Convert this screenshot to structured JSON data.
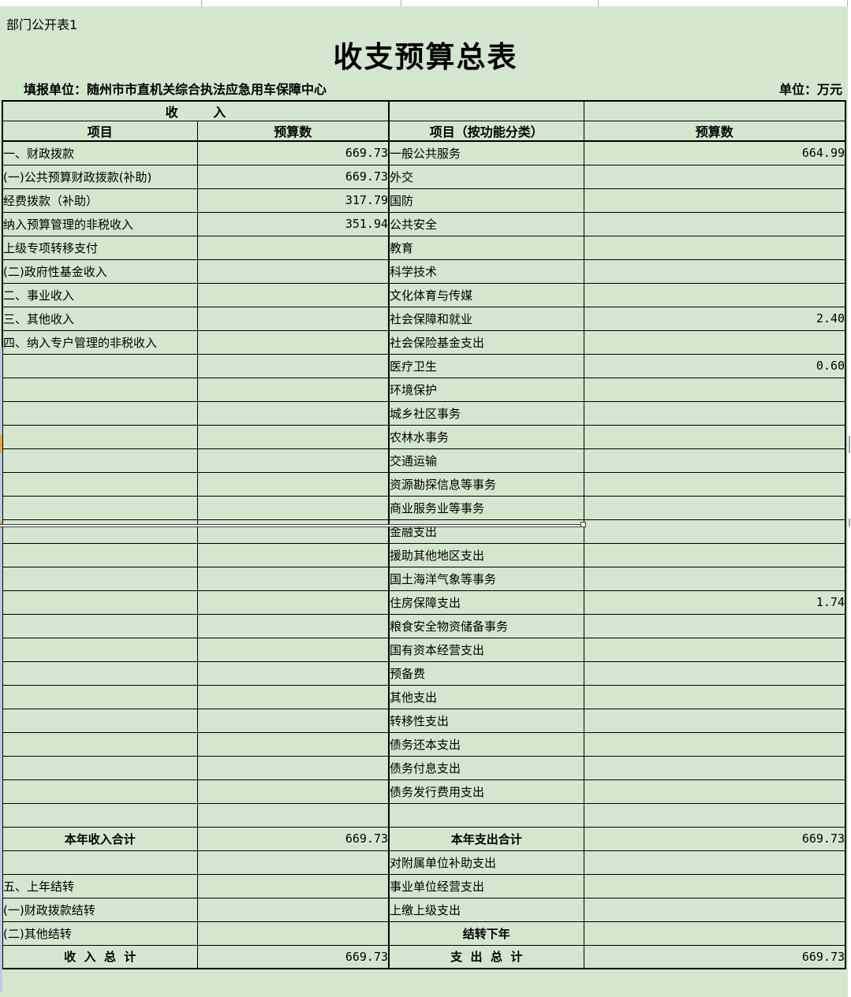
{
  "page": {
    "sheet_label": "部门公开表1",
    "title": "收支预算总表",
    "reporting_unit": "填报单位：随州市市直机关综合执法应急用车保障中心",
    "unit_note": "单位：万元"
  },
  "colors": {
    "sheet_green": "#d3e7cf",
    "grid_line": "#000000",
    "edge_blue": "#b9cbe6",
    "mark_orange": "#f0a63c"
  },
  "table": {
    "header": {
      "income_group": "收        入",
      "col_item": "项目",
      "col_budget": "预算数",
      "col_item_func": "项目（按功能分类）",
      "col_budget_func": "预算数"
    },
    "rows": [
      {
        "l": "一、财政拨款",
        "li": 0,
        "lv": "669.73",
        "r": "一般公共服务",
        "rv": "664.99"
      },
      {
        "l": "(一)公共预算财政拨款(补助)",
        "li": 1,
        "lv": "669.73",
        "r": "外交",
        "rv": ""
      },
      {
        "l": "经费拨款（补助）",
        "li": 2,
        "lv": "317.79",
        "r": "国防",
        "rv": ""
      },
      {
        "l": "纳入预算管理的非税收入",
        "li": 2,
        "lv": "351.94",
        "r": "公共安全",
        "rv": ""
      },
      {
        "l": "上级专项转移支付",
        "li": 2,
        "lv": "",
        "r": "教育",
        "rv": ""
      },
      {
        "l": "(二)政府性基金收入",
        "li": 1,
        "lv": "",
        "r": "科学技术",
        "rv": ""
      },
      {
        "l": "二、事业收入",
        "li": 0,
        "lv": "",
        "r": "文化体育与传媒",
        "rv": ""
      },
      {
        "l": "三、其他收入",
        "li": 0,
        "lv": "",
        "r": "社会保障和就业",
        "rv": "2.40"
      },
      {
        "l": "四、纳入专户管理的非税收入",
        "li": 0,
        "lv": "",
        "r": "社会保险基金支出",
        "rv": ""
      },
      {
        "l": "",
        "li": 0,
        "lv": "",
        "r": "医疗卫生",
        "rv": "0.60"
      },
      {
        "l": "",
        "li": 0,
        "lv": "",
        "r": "环境保护",
        "rv": ""
      },
      {
        "l": "",
        "li": 0,
        "lv": "",
        "r": "城乡社区事务",
        "rv": ""
      },
      {
        "l": "",
        "li": 0,
        "lv": "",
        "r": "农林水事务",
        "rv": ""
      },
      {
        "l": "",
        "li": 0,
        "lv": "",
        "r": "交通运输",
        "rv": ""
      },
      {
        "l": "",
        "li": 0,
        "lv": "",
        "r": "资源勘探信息等事务",
        "rv": ""
      },
      {
        "l": "",
        "li": 0,
        "lv": "",
        "r": "商业服务业等事务",
        "rv": ""
      },
      {
        "l": "",
        "li": 0,
        "lv": "",
        "r": "金融支出",
        "rv": ""
      },
      {
        "l": "",
        "li": 0,
        "lv": "",
        "r": "援助其他地区支出",
        "rv": ""
      },
      {
        "l": "",
        "li": 0,
        "lv": "",
        "r": "国土海洋气象等事务",
        "rv": ""
      },
      {
        "l": "",
        "li": 0,
        "lv": "",
        "r": "住房保障支出",
        "rv": "1.74"
      },
      {
        "l": "",
        "li": 0,
        "lv": "",
        "r": "粮食安全物资储备事务",
        "rv": ""
      },
      {
        "l": "",
        "li": 0,
        "lv": "",
        "r": "国有资本经营支出",
        "rv": ""
      },
      {
        "l": "",
        "li": 0,
        "lv": "",
        "r": "预备费",
        "rv": ""
      },
      {
        "l": "",
        "li": 0,
        "lv": "",
        "r": "其他支出",
        "rv": ""
      },
      {
        "l": "",
        "li": 0,
        "lv": "",
        "r": "转移性支出",
        "rv": ""
      },
      {
        "l": "",
        "li": 0,
        "lv": "",
        "r": "债务还本支出",
        "rv": ""
      },
      {
        "l": "",
        "li": 0,
        "lv": "",
        "r": "债务付息支出",
        "rv": ""
      },
      {
        "l": "",
        "li": 0,
        "lv": "",
        "r": "债务发行费用支出",
        "rv": ""
      },
      {
        "l": "",
        "li": 0,
        "lv": "",
        "r": "",
        "rv": ""
      },
      {
        "l": "本年收入合计",
        "li": 0,
        "lb": true,
        "lc": true,
        "lv": "669.73",
        "r": "本年支出合计",
        "rb": true,
        "rc": true,
        "rv": "669.73"
      },
      {
        "l": "",
        "li": 0,
        "lv": "",
        "r": "对附属单位补助支出",
        "rv": ""
      },
      {
        "l": "五、上年结转",
        "li": 0,
        "lv": "",
        "r": "事业单位经营支出",
        "rv": ""
      },
      {
        "l": "(一)财政拨款结转",
        "li": 1,
        "lv": "",
        "r": "上缴上级支出",
        "rv": ""
      },
      {
        "l": "(二)其他结转",
        "li": 1,
        "lv": "",
        "r": "结转下年",
        "rb": true,
        "rc": true,
        "rv": ""
      },
      {
        "l": "收  入  总  计",
        "li": 0,
        "lb": true,
        "lc": true,
        "lv": "669.73",
        "r": "支  出  总  计",
        "rb": true,
        "rc": true,
        "rv": "669.73"
      }
    ]
  }
}
